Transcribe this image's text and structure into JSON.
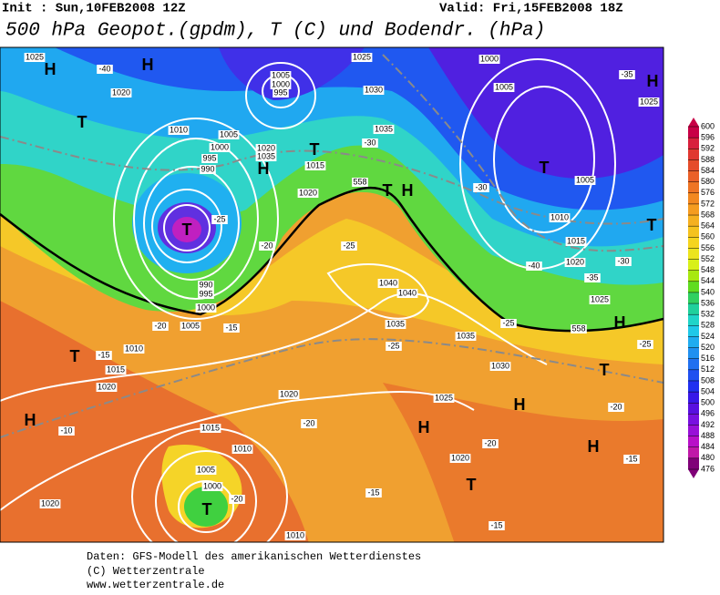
{
  "header": {
    "init": "Init : Sun,10FEB2008 12Z",
    "valid": "Valid: Fri,15FEB2008 18Z",
    "title": "500 hPa Geopot.(gpdm), T (C) und Bodendr. (hPa)"
  },
  "map": {
    "pressure_centers": [
      "H",
      "H",
      "T",
      "T",
      "H",
      "T",
      "T",
      "H",
      "T",
      "H",
      "T",
      "H",
      "T",
      "H",
      "H",
      "T",
      "H",
      "T",
      "T",
      "H"
    ],
    "contour_labels": [
      "1025",
      "-40",
      "1020",
      "1010",
      "1005",
      "1000",
      "995",
      "990",
      "1005",
      "1000",
      "995",
      "1020",
      "1035",
      "1015",
      "1020",
      "-30",
      "1035",
      "1030",
      "1025",
      "1000",
      "1005",
      "-35",
      "1025",
      "1005",
      "1010",
      "1015",
      "1020",
      "1025",
      "-25",
      "1035",
      "1035",
      "1030",
      "1025",
      "-25",
      "1040",
      "1040",
      "-25",
      "-20",
      "-25",
      "990",
      "995",
      "1000",
      "1005",
      "-20",
      "-15",
      "1010",
      "-15",
      "1015",
      "1020",
      "1020",
      "-20",
      "1015",
      "-10",
      "1010",
      "1005",
      "1000",
      "-20",
      "1020",
      "-15",
      "1020",
      "-20",
      "-15",
      "-15",
      "1010",
      "-20",
      "-25",
      "558",
      "558",
      "-30",
      "-40",
      "-35",
      "-30"
    ]
  },
  "colorbar": {
    "ticks": [
      600,
      596,
      592,
      588,
      584,
      580,
      576,
      572,
      568,
      564,
      560,
      556,
      552,
      548,
      544,
      540,
      536,
      532,
      528,
      524,
      520,
      516,
      512,
      508,
      504,
      500,
      496,
      492,
      488,
      484,
      480,
      476
    ],
    "colors": [
      "#c80046",
      "#d8203c",
      "#e03830",
      "#e54c2a",
      "#ea6028",
      "#ee7424",
      "#f28820",
      "#f59c20",
      "#f5b020",
      "#f5c21e",
      "#f5d41e",
      "#ece41e",
      "#d8f01a",
      "#a8e810",
      "#60dc20",
      "#30d060",
      "#20d09c",
      "#20d4c8",
      "#20c8e8",
      "#20acf0",
      "#2090f0",
      "#2070f0",
      "#2050f0",
      "#2030f0",
      "#3818e8",
      "#5810e0",
      "#7810e0",
      "#9810d8",
      "#b810c8",
      "#c018a8",
      "#800078"
    ]
  },
  "footer": {
    "line1": "Daten: GFS-Modell des amerikanischen Wetterdienstes",
    "line2": "(C) Wetterzentrale",
    "line3": "www.wetterzentrale.de"
  }
}
